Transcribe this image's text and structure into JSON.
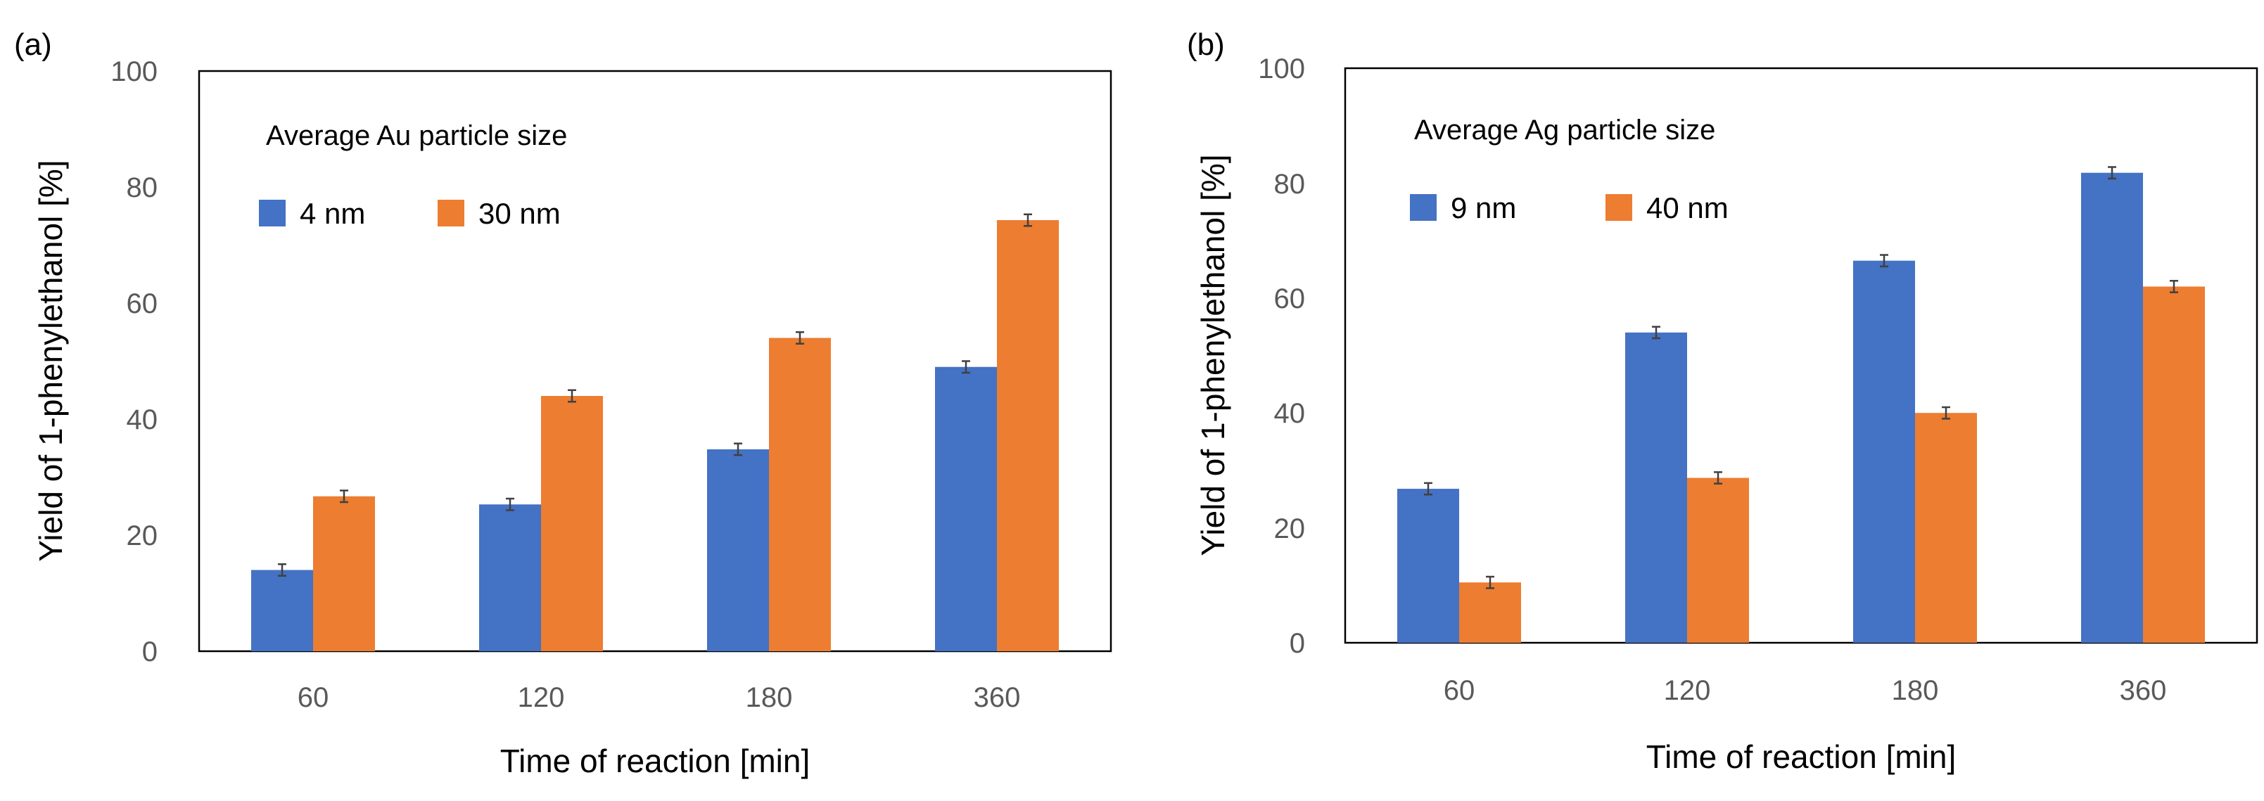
{
  "colors": {
    "blue": "#4472C4",
    "orange": "#ED7D31"
  },
  "chart_data": [
    {
      "type": "bar",
      "panel_label": "(a)",
      "title": "",
      "xlabel": "Time of reaction [min]",
      "ylabel": "Yield of 1-phenylethanol [%]",
      "ylim": [
        0,
        100
      ],
      "yticks": [
        "0",
        "20",
        "40",
        "60",
        "80",
        "100"
      ],
      "categories": [
        "60",
        "120",
        "180",
        "360"
      ],
      "legend_title": "Average Au particle size",
      "legend_position": "top-left",
      "grid": false,
      "series": [
        {
          "name": "4 nm",
          "color": "#4472C4",
          "values": [
            14,
            25.3,
            34.8,
            49
          ],
          "errors": [
            1,
            1,
            1,
            1
          ]
        },
        {
          "name": "30 nm",
          "color": "#ED7D31",
          "values": [
            26.7,
            44,
            54,
            74.3
          ],
          "errors": [
            1,
            1,
            1,
            1
          ]
        }
      ]
    },
    {
      "type": "bar",
      "panel_label": "(b)",
      "title": "",
      "xlabel": "Time of reaction [min]",
      "ylabel": "Yield of 1-phenylethanol [%]",
      "ylim": [
        0,
        100
      ],
      "yticks": [
        "0",
        "20",
        "40",
        "60",
        "80",
        "100"
      ],
      "categories": [
        "60",
        "120",
        "180",
        "360"
      ],
      "legend_title": "Average Ag particle size",
      "legend_position": "top-left",
      "grid": false,
      "series": [
        {
          "name": "9 nm",
          "color": "#4472C4",
          "values": [
            26.8,
            54,
            66.5,
            81.8
          ],
          "errors": [
            1,
            1,
            1,
            1
          ]
        },
        {
          "name": "40 nm",
          "color": "#ED7D31",
          "values": [
            10.5,
            28.7,
            40,
            62
          ],
          "errors": [
            1,
            1,
            1,
            1
          ]
        }
      ]
    }
  ]
}
